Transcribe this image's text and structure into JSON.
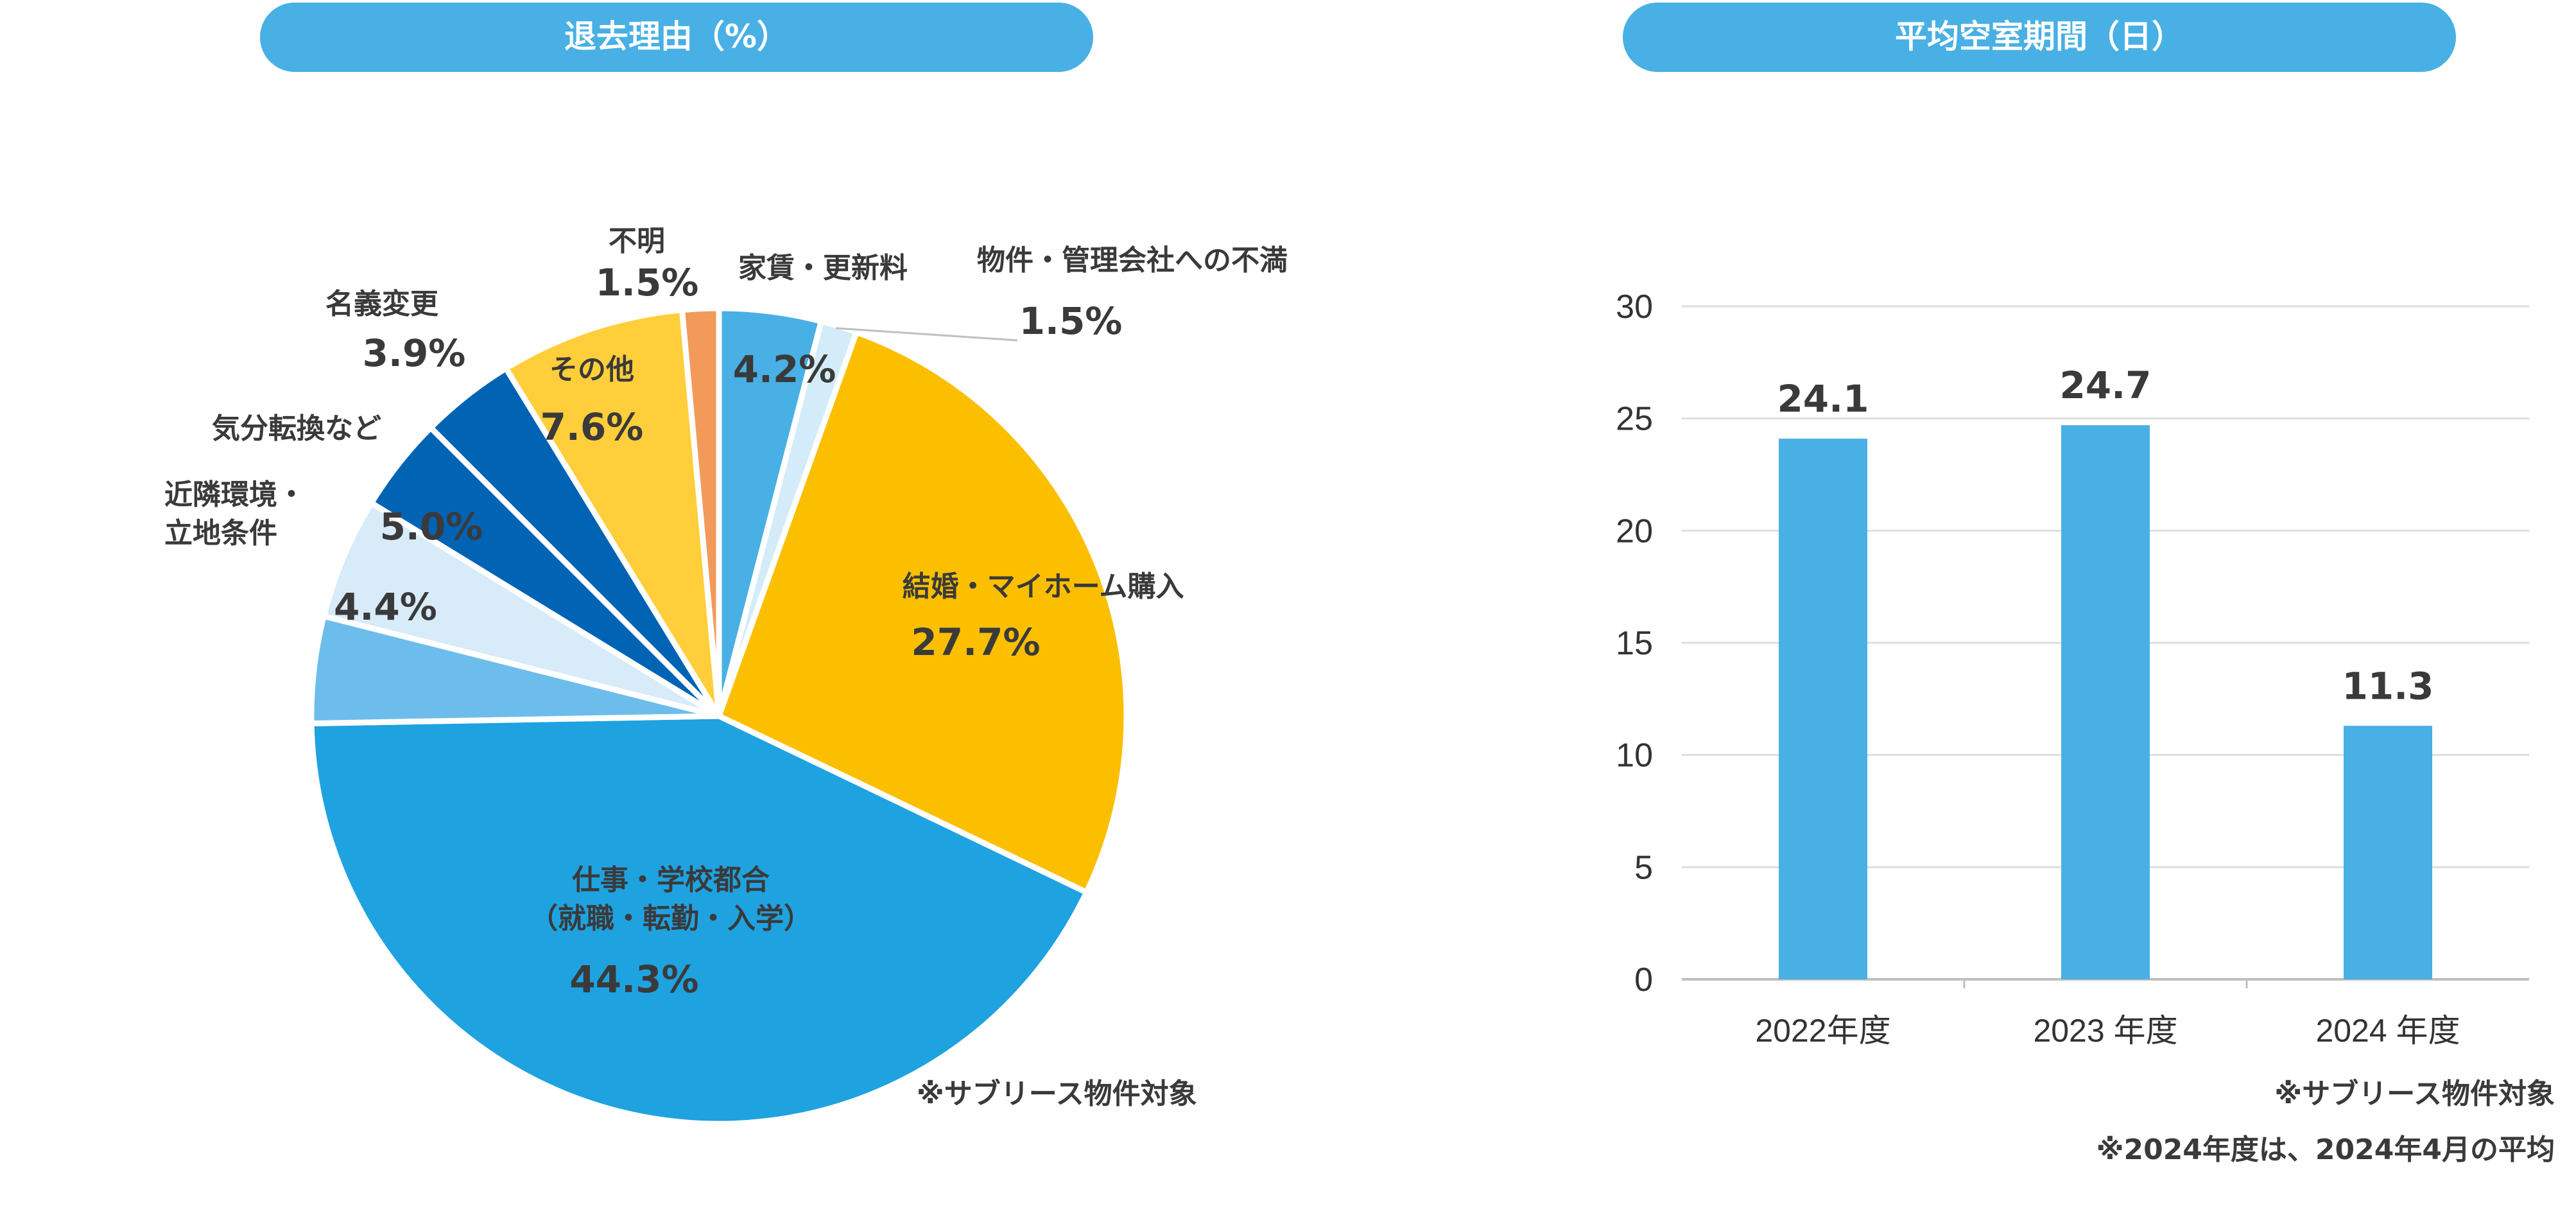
{
  "pie_header": "退去理由（%）",
  "bar_header": "平均空室期間（日）",
  "pie_note": "※サブリース物件対象",
  "bar_notes": [
    "※サブリース物件対象",
    "※2024年度は、2024年4月の平均"
  ],
  "colors": {
    "header_bg": "#48b0e4",
    "leader_line": "#bfbfbf",
    "gridline": "#dedede",
    "axis": "#bfbfbf"
  },
  "chart_data": [
    {
      "type": "pie",
      "title": "退去理由（%）",
      "slices": [
        {
          "label_lines": [
            "家賃・更新料"
          ],
          "value_label": "4.2%",
          "value": 4.2,
          "color": "#48b0e4"
        },
        {
          "label_lines": [
            "物件・管理会社への不満"
          ],
          "value_label": "1.5%",
          "value": 1.5,
          "color": "#d4ecfa"
        },
        {
          "label_lines": [
            "結婚・マイホーム購入"
          ],
          "value_label": "27.7%",
          "value": 27.7,
          "color": "#fbbf00"
        },
        {
          "label_lines": [
            "仕事・学校都合",
            "（就職・転勤・入学）"
          ],
          "value_label": "44.3%",
          "value": 44.3,
          "color": "#1fa2e0"
        },
        {
          "label_lines": [],
          "value_label": "4.4%",
          "value": 4.4,
          "color": "#6cbdec"
        },
        {
          "label_lines": [
            "近隣環境・",
            "立地条件"
          ],
          "value_label": "5.0%",
          "value": 5.0,
          "color": "#d7ebf9"
        },
        {
          "label_lines": [
            "気分転換など"
          ],
          "value_label": "",
          "value": 3.9,
          "color": "#0063b4"
        },
        {
          "label_lines": [
            "名義変更"
          ],
          "value_label": "3.9%",
          "value": 3.9,
          "color": "#0063b4"
        },
        {
          "label_lines": [
            "その他"
          ],
          "value_label": "7.6%",
          "value": 7.6,
          "color": "#ffce3a"
        },
        {
          "label_lines": [
            "不明"
          ],
          "value_label": "1.5%",
          "value": 1.5,
          "color": "#f19a5a"
        }
      ]
    },
    {
      "type": "bar",
      "title": "平均空室期間（日）",
      "categories": [
        "2022年度",
        "2023 年度",
        "2024 年度"
      ],
      "values": [
        24.1,
        24.7,
        11.3
      ],
      "value_labels": [
        "24.1",
        "24.7",
        "11.3"
      ],
      "ylim": [
        0,
        30
      ],
      "yticks": [
        "0",
        "5",
        "10",
        "15",
        "20",
        "25",
        "30"
      ],
      "bar_color": "#48b0e4",
      "grid": true
    }
  ]
}
